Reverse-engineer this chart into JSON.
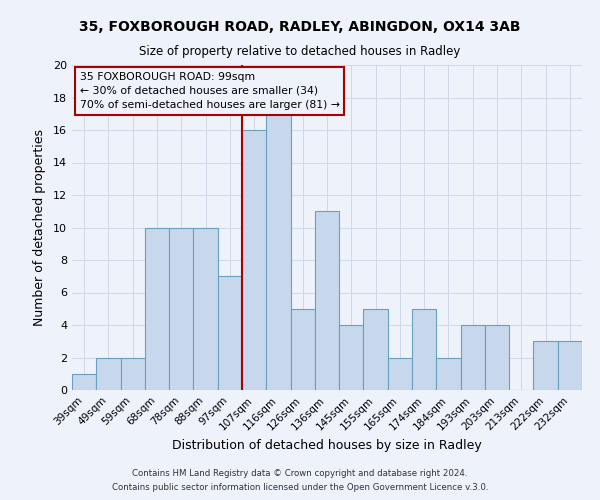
{
  "title_line1": "35, FOXBOROUGH ROAD, RADLEY, ABINGDON, OX14 3AB",
  "title_line2": "Size of property relative to detached houses in Radley",
  "xlabel": "Distribution of detached houses by size in Radley",
  "ylabel": "Number of detached properties",
  "categories": [
    "39sqm",
    "49sqm",
    "59sqm",
    "68sqm",
    "78sqm",
    "88sqm",
    "97sqm",
    "107sqm",
    "116sqm",
    "126sqm",
    "136sqm",
    "145sqm",
    "155sqm",
    "165sqm",
    "174sqm",
    "184sqm",
    "193sqm",
    "203sqm",
    "213sqm",
    "222sqm",
    "232sqm"
  ],
  "values": [
    1,
    2,
    2,
    10,
    10,
    10,
    7,
    16,
    17,
    5,
    11,
    4,
    5,
    2,
    5,
    2,
    4,
    4,
    0,
    3,
    3
  ],
  "bar_color": "#c8d8ec",
  "bar_edge_color": "#6a9fc0",
  "vline_x_index": 6,
  "vline_color": "#aa0000",
  "ylim": [
    0,
    20
  ],
  "yticks": [
    0,
    2,
    4,
    6,
    8,
    10,
    12,
    14,
    16,
    18,
    20
  ],
  "grid_color": "#d0d8e8",
  "annotation_box_color": "#aa0000",
  "annotation_line1": "35 FOXBOROUGH ROAD: 99sqm",
  "annotation_line2": "← 30% of detached houses are smaller (34)",
  "annotation_line3": "70% of semi-detached houses are larger (81) →",
  "footer_line1": "Contains HM Land Registry data © Crown copyright and database right 2024.",
  "footer_line2": "Contains public sector information licensed under the Open Government Licence v.3.0.",
  "background_color": "#eef2fa"
}
